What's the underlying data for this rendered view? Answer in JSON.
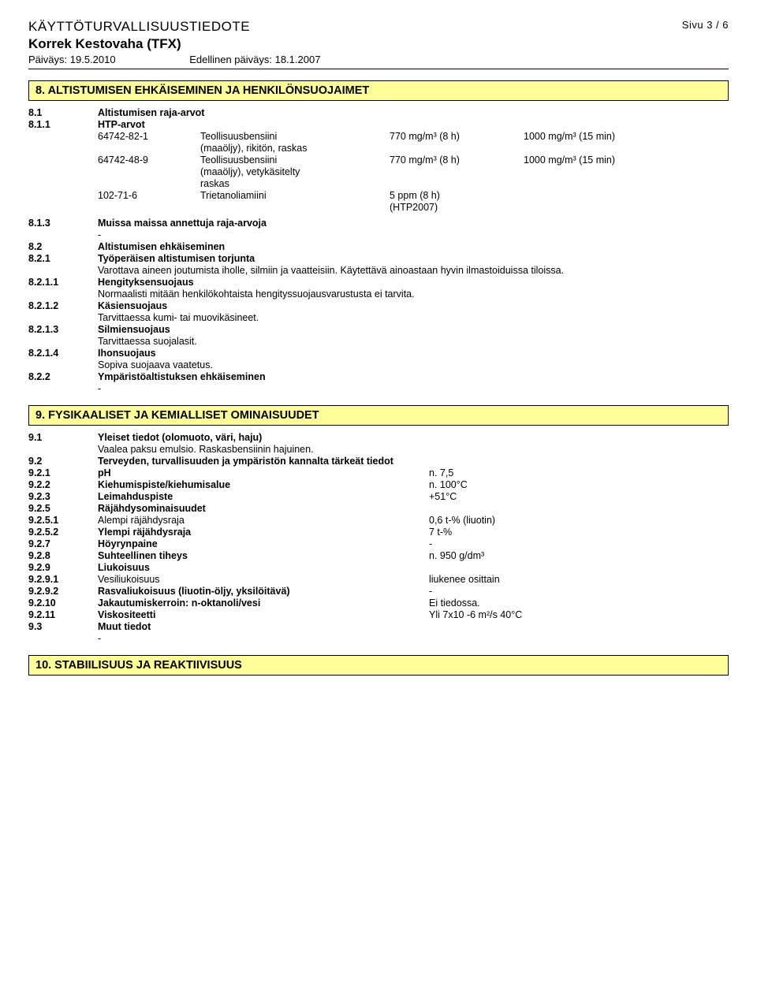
{
  "header": {
    "doc_type": "KÄYTTÖTURVALLISUUSTIEDOTE",
    "page_label": "Sivu 3 / 6",
    "product": "Korrek Kestovaha (TFX)",
    "date_label": "Päiväys: 19.5.2010",
    "prev_date_label": "Edellinen päiväys: 18.1.2007"
  },
  "s8": {
    "title": "8. ALTISTUMISEN EHKÄISEMINEN JA HENKILÖNSUOJAIMET",
    "r8_1_num": "8.1",
    "r8_1_t": "Altistumisen raja-arvot",
    "r8_1_1_num": "8.1.1",
    "r8_1_1_t": "HTP-arvot",
    "htp": [
      {
        "cas": "64742-82-1",
        "name1": "Teollisuusbensiini",
        "name2": "(maaöljy), rikitön, raskas",
        "c1": "770 mg/m³ (8 h)",
        "c2": "1000 mg/m³ (15 min)"
      },
      {
        "cas": "64742-48-9",
        "name1": "Teollisuusbensiini",
        "name2": "(maaöljy), vetykäsitelty",
        "name3": "raskas",
        "c1": "770 mg/m³ (8 h)",
        "c2": "1000 mg/m³ (15 min)"
      },
      {
        "cas": "102-71-6",
        "name1": "Trietanoliamiini",
        "c1_a": "5 ppm (8 h)",
        "c1_b": "(HTP2007)"
      }
    ],
    "r8_1_3_num": "8.1.3",
    "r8_1_3_t": "Muissa maissa annettuja raja-arvoja",
    "dash1": "-",
    "r8_2_num": "8.2",
    "r8_2_t": "Altistumisen ehkäiseminen",
    "r8_2_1_num": "8.2.1",
    "r8_2_1_t": "Työperäisen altistumisen torjunta",
    "r8_2_1_txt": "Varottava aineen joutumista iholle, silmiin ja vaatteisiin. Käytettävä ainoastaan hyvin ilmastoiduissa tiloissa.",
    "r8_2_1_1_num": "8.2.1.1",
    "r8_2_1_1_t": "Hengityksensuojaus",
    "r8_2_1_1_txt": "Normaalisti mitään henkilökohtaista hengityssuojausvarustusta ei tarvita.",
    "r8_2_1_2_num": "8.2.1.2",
    "r8_2_1_2_t": "Käsiensuojaus",
    "r8_2_1_2_txt": "Tarvittaessa kumi- tai muovikäsineet.",
    "r8_2_1_3_num": "8.2.1.3",
    "r8_2_1_3_t": "Silmiensuojaus",
    "r8_2_1_3_txt": "Tarvittaessa suojalasit.",
    "r8_2_1_4_num": "8.2.1.4",
    "r8_2_1_4_t": "Ihonsuojaus",
    "r8_2_1_4_txt": "Sopiva suojaava vaatetus.",
    "r8_2_2_num": "8.2.2",
    "r8_2_2_t": "Ympäristöaltistuksen ehkäiseminen",
    "dash2": "-"
  },
  "s9": {
    "title": "9. FYSIKAALISET JA KEMIALLISET OMINAISUUDET",
    "r9_1_num": "9.1",
    "r9_1_t": "Yleiset tiedot (olomuoto, väri, haju)",
    "r9_1_txt": "Vaalea paksu emulsio. Raskasbensiinin hajuinen.",
    "r9_2_num": "9.2",
    "r9_2_t": "Terveyden, turvallisuuden ja ympäristön kannalta tärkeät tiedot",
    "props": [
      {
        "num": "9.2.1",
        "label": "pH",
        "val": "n. 7,5"
      },
      {
        "num": "9.2.2",
        "label": "Kiehumispiste/kiehumisalue",
        "val": "n. 100°C"
      },
      {
        "num": "9.2.3",
        "label": "Leimahduspiste",
        "val": "+51°C"
      },
      {
        "num": "9.2.5",
        "label": "Räjähdysominaisuudet",
        "val": ""
      },
      {
        "num": "9.2.5.1",
        "label": "Alempi räjähdysraja",
        "val": "0,6 t-% (liuotin)"
      },
      {
        "num": "9.2.5.2",
        "label": "Ylempi räjähdysraja",
        "val": "7 t-%"
      },
      {
        "num": "9.2.7",
        "label": "Höyrynpaine",
        "val": "-"
      },
      {
        "num": "9.2.8",
        "label": "Suhteellinen tiheys",
        "val": "n. 950 g/dm³"
      },
      {
        "num": "9.2.9",
        "label": "Liukoisuus",
        "val": ""
      },
      {
        "num": "9.2.9.1",
        "label": "Vesiliukoisuus",
        "val": "liukenee osittain"
      },
      {
        "num": "9.2.9.2",
        "label": "Rasvaliukoisuus (liuotin-öljy, yksilöitävä)",
        "val": "-"
      },
      {
        "num": "9.2.10",
        "label": "Jakautumiskerroin: n-oktanoli/vesi",
        "val": "Ei tiedossa."
      },
      {
        "num": "9.2.11",
        "label": "Viskositeetti",
        "val": "Yli 7x10 -6 m²/s 40°C"
      }
    ],
    "r9_3_num": "9.3",
    "r9_3_t": "Muut tiedot",
    "dash3": "-"
  },
  "s10": {
    "title": "10. STABIILISUUS JA REAKTIIVISUUS"
  }
}
